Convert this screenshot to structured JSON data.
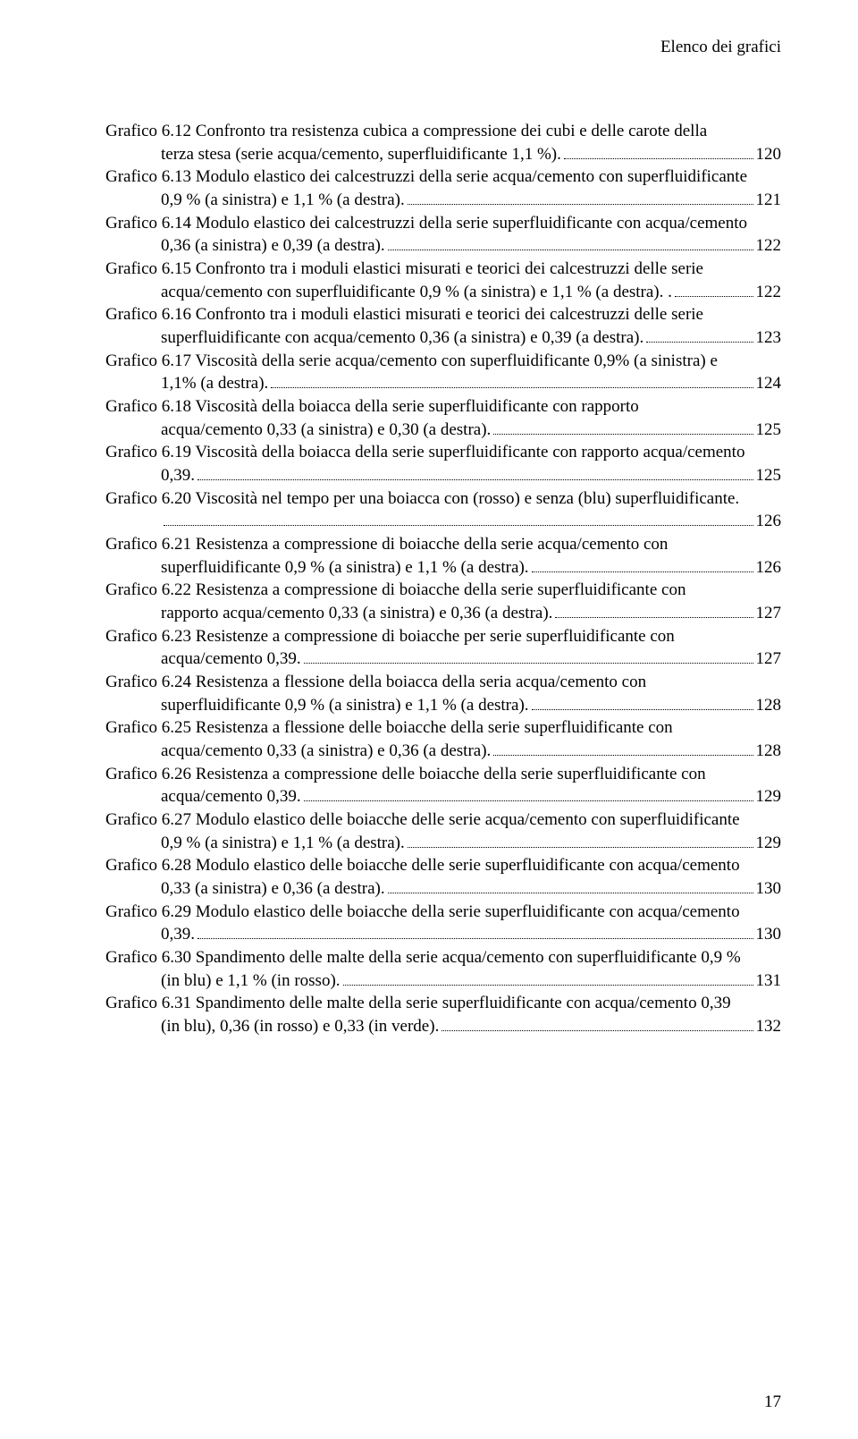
{
  "header": "Elenco dei grafici",
  "page_number": "17",
  "entries": [
    {
      "line1": "Grafico 6.12 Confronto tra resistenza cubica a compressione dei cubi e  delle carote della",
      "line2": "terza stesa (serie acqua/cemento, superfluidificante 1,1 %).",
      "page": "120"
    },
    {
      "line1": "Grafico 6.13 Modulo elastico dei calcestruzzi della serie acqua/cemento con superfluidificante",
      "line2": "0,9 % (a sinistra) e 1,1 % (a destra).",
      "page": "121"
    },
    {
      "line1": "Grafico 6.14 Modulo elastico dei calcestruzzi della serie superfluidificante con acqua/cemento",
      "line2": "0,36 (a sinistra) e 0,39 (a destra).",
      "page": "122"
    },
    {
      "line1": "Grafico 6.15 Confronto tra i moduli elastici misurati e teorici dei calcestruzzi delle serie",
      "line2": "acqua/cemento con superfluidificante 0,9 % (a sinistra) e 1,1 % (a destra). .",
      "page": "122"
    },
    {
      "line1": "Grafico 6.16 Confronto tra i moduli elastici misurati e teorici dei calcestruzzi delle serie",
      "line2": "superfluidificante  con acqua/cemento 0,36 (a sinistra) e 0,39 (a destra).",
      "page": "123"
    },
    {
      "line1": "Grafico 6.17 Viscosità della serie acqua/cemento con superfluidificante 0,9% (a sinistra) e",
      "line2": "1,1% (a destra).",
      "page": "124"
    },
    {
      "line1": "Grafico 6.18 Viscosità della boiacca della serie superfluidificante con rapporto",
      "line2": "acqua/cemento 0,33 (a sinistra) e 0,30 (a destra).",
      "page": "125"
    },
    {
      "line1": "Grafico 6.19 Viscosità della boiacca della serie superfluidificante con rapporto acqua/cemento",
      "line2": "0,39.",
      "page": "125"
    },
    {
      "line1": "Grafico 6.20 Viscosità nel tempo per una boiacca con (rosso) e senza (blu) superfluidificante.",
      "line2": "",
      "page": "126"
    },
    {
      "line1": "Grafico 6.21 Resistenza a compressione di boiacche della serie acqua/cemento con",
      "line2": "superfluidificante 0,9 % (a sinistra) e 1,1 % (a destra).",
      "page": "126"
    },
    {
      "line1": "Grafico 6.22 Resistenza a compressione di boiacche della serie superfluidificante con",
      "line2": "rapporto  acqua/cemento 0,33 (a sinistra) e 0,36 (a destra).",
      "page": "127"
    },
    {
      "line1": "Grafico 6.23 Resistenze a compressione di boiacche per serie superfluidificante con",
      "line2": "acqua/cemento 0,39.",
      "page": "127"
    },
    {
      "line1": "Grafico 6.24 Resistenza a flessione della boiacca della seria acqua/cemento con",
      "line2": "superfluidificante 0,9 % (a sinistra) e 1,1 % (a destra).",
      "page": "128"
    },
    {
      "line1": "Grafico 6.25 Resistenza a flessione delle boiacche della serie superfluidificante  con",
      "line2": "acqua/cemento 0,33 (a sinistra) e 0,36 (a destra).",
      "page": "128"
    },
    {
      "line1": "Grafico 6.26 Resistenza a compressione delle boiacche della serie superfluidificante con",
      "line2": "acqua/cemento 0,39.",
      "page": "129"
    },
    {
      "line1": "Grafico 6.27 Modulo elastico delle boiacche delle serie acqua/cemento con  superfluidificante",
      "line2": "0,9 % (a sinistra) e 1,1 % (a destra).",
      "page": "129"
    },
    {
      "line1": "Grafico 6.28 Modulo elastico delle boiacche delle serie superfluidificante con  acqua/cemento",
      "line2": "0,33 (a sinistra) e 0,36 (a destra).",
      "page": "130"
    },
    {
      "line1": "Grafico 6.29 Modulo elastico delle boiacche della serie superfluidificante con acqua/cemento",
      "line2": "0,39.",
      "page": "130"
    },
    {
      "line1": "Grafico 6.30 Spandimento delle malte della serie acqua/cemento con superfluidificante 0,9 %",
      "line2": "(in blu)  e 1,1 % (in rosso).",
      "page": "131"
    },
    {
      "line1": "Grafico 6.31 Spandimento delle malte della serie superfluidificante con acqua/cemento 0,39",
      "line2": "(in blu),  0,36 (in rosso) e 0,33 (in verde).",
      "page": "132"
    }
  ]
}
